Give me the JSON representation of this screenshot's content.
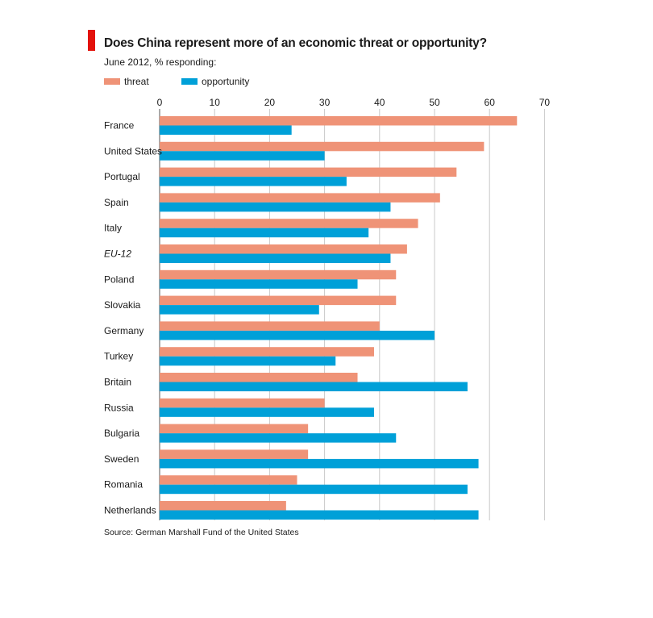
{
  "title": "Does China represent more of an economic threat or opportunity?",
  "subtitle": "June 2012, % responding:",
  "source": "Source: German Marshall Fund of the United States",
  "colors": {
    "accent": "#e3120b",
    "threat": "#ef9377",
    "opportunity": "#00a0d8",
    "grid": "#c8c8c8",
    "axis": "#555555"
  },
  "chart_data": {
    "type": "bar",
    "orientation": "horizontal",
    "title": "Does China represent more of an economic threat or opportunity?",
    "subtitle": "June 2012, % responding:",
    "categories": [
      "France",
      "United States",
      "Portugal",
      "Spain",
      "Italy",
      "EU-12",
      "Poland",
      "Slovakia",
      "Germany",
      "Turkey",
      "Britain",
      "Russia",
      "Bulgaria",
      "Sweden",
      "Romania",
      "Netherlands"
    ],
    "italic_categories": [
      "EU-12"
    ],
    "series": [
      {
        "name": "threat",
        "color": "#ef9377",
        "values": [
          65,
          59,
          54,
          51,
          47,
          45,
          43,
          43,
          40,
          39,
          36,
          30,
          27,
          27,
          25,
          23
        ]
      },
      {
        "name": "opportunity",
        "color": "#00a0d8",
        "values": [
          24,
          30,
          34,
          42,
          38,
          42,
          36,
          29,
          50,
          32,
          56,
          39,
          43,
          58,
          56,
          58
        ]
      }
    ],
    "xlim": [
      0,
      70
    ],
    "xticks": [
      0,
      10,
      20,
      30,
      40,
      50,
      60,
      70
    ],
    "xlabel": "",
    "ylabel": "",
    "grid": true,
    "legend": "top-left"
  }
}
